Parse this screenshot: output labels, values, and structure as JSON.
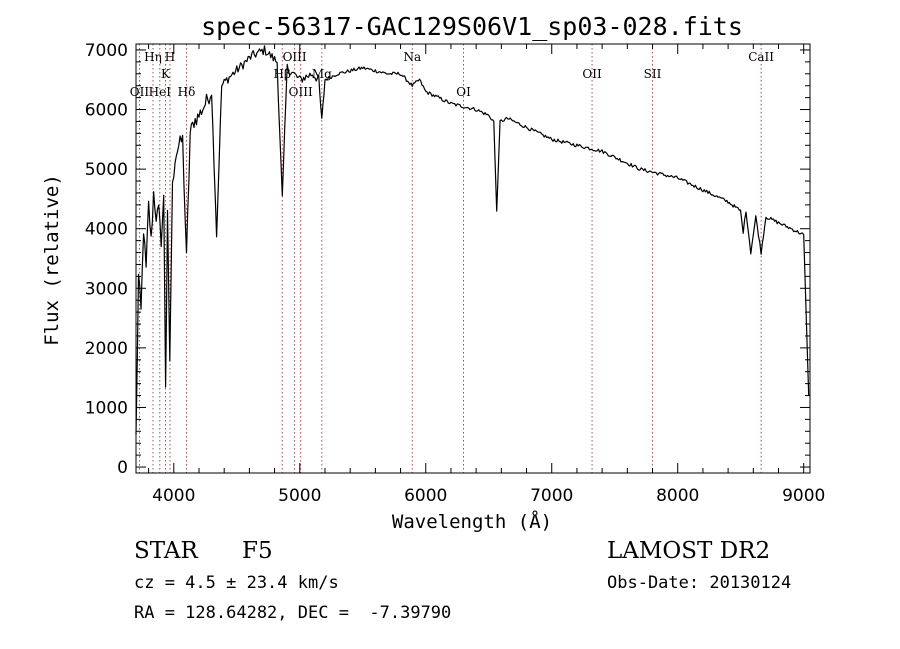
{
  "chart_data": {
    "type": "line",
    "title": "spec-56317-GAC129S06V1_sp03-028.fits",
    "xlabel": "Wavelength (Å)",
    "ylabel": "Flux (relative)",
    "xlim": [
      3700,
      9050
    ],
    "ylim": [
      -100,
      7100
    ],
    "xticks": [
      4000,
      5000,
      6000,
      7000,
      8000,
      9000
    ],
    "yticks": [
      0,
      1000,
      2000,
      3000,
      4000,
      5000,
      6000,
      7000
    ],
    "series": [
      {
        "name": "spectrum",
        "x": [
          3700,
          3720,
          3740,
          3760,
          3780,
          3800,
          3820,
          3840,
          3860,
          3880,
          3900,
          3920,
          3935,
          3950,
          3968,
          3990,
          4010,
          4040,
          4070,
          4101,
          4130,
          4160,
          4200,
          4250,
          4300,
          4340,
          4380,
          4420,
          4470,
          4520,
          4570,
          4620,
          4670,
          4720,
          4770,
          4820,
          4861,
          4900,
          4950,
          5000,
          5050,
          5100,
          5150,
          5175,
          5200,
          5300,
          5400,
          5500,
          5600,
          5700,
          5800,
          5893,
          5950,
          6000,
          6100,
          6200,
          6300,
          6400,
          6500,
          6540,
          6563,
          6590,
          6650,
          6700,
          6800,
          6900,
          7000,
          7100,
          7200,
          7300,
          7400,
          7500,
          7600,
          7700,
          7800,
          7900,
          8000,
          8100,
          8200,
          8300,
          8400,
          8498,
          8520,
          8542,
          8580,
          8620,
          8662,
          8700,
          8800,
          8900,
          8950,
          9000
        ],
        "y": [
          500,
          3200,
          2600,
          4000,
          3300,
          4400,
          3800,
          4600,
          4200,
          4300,
          3800,
          4500,
          1400,
          4200,
          1800,
          4700,
          5200,
          5400,
          5500,
          3500,
          5600,
          5800,
          5900,
          6100,
          6300,
          3900,
          6400,
          6500,
          6600,
          6700,
          6800,
          6900,
          6950,
          7000,
          6900,
          6800,
          4500,
          6700,
          6600,
          6500,
          6550,
          6600,
          6500,
          5800,
          6500,
          6600,
          6650,
          6700,
          6650,
          6600,
          6600,
          6400,
          6500,
          6300,
          6200,
          6100,
          6050,
          6000,
          5900,
          5800,
          4300,
          5800,
          5850,
          5800,
          5700,
          5600,
          5500,
          5450,
          5400,
          5350,
          5300,
          5200,
          5100,
          5000,
          4950,
          4900,
          4850,
          4750,
          4650,
          4550,
          4450,
          4300,
          3950,
          4300,
          3600,
          4200,
          3600,
          4200,
          4100,
          4000,
          3950,
          3900
        ]
      }
    ],
    "line_markers": [
      {
        "label": "OII",
        "x": 3727,
        "level": 3
      },
      {
        "label": "Hη",
        "x": 3835,
        "level": 1
      },
      {
        "label": "H",
        "x": 3970,
        "level": 1
      },
      {
        "label": "K",
        "x": 3934,
        "level": 2
      },
      {
        "label": "HeI",
        "x": 3889,
        "level": 3
      },
      {
        "label": "Hδ",
        "x": 4101,
        "level": 3
      },
      {
        "label": "OIII",
        "x": 4959,
        "level": 1
      },
      {
        "label": "Hβ",
        "x": 4861,
        "level": 2
      },
      {
        "label": "OIII",
        "x": 5007,
        "level": 3
      },
      {
        "label": "Mg",
        "x": 5175,
        "level": 2
      },
      {
        "label": "Na",
        "x": 5893,
        "level": 1
      },
      {
        "label": "OI",
        "x": 6300,
        "level": 3
      },
      {
        "label": "OII",
        "x": 7320,
        "level": 2
      },
      {
        "label": "SII",
        "x": 7800,
        "level": 2
      },
      {
        "label": "CaII",
        "x": 8662,
        "level": 1
      }
    ]
  },
  "info": {
    "class_label": "STAR",
    "subclass_label": "F5",
    "survey_label": "LAMOST DR2",
    "cz_text": "cz = 4.5 ± 23.4 km/s",
    "obs_date_text": "Obs-Date: 20130124",
    "coords_text": "RA = 128.64282, DEC =  -7.39790"
  }
}
